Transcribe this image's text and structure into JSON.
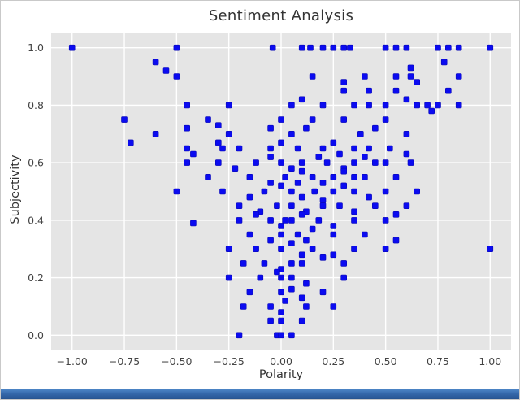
{
  "window": {
    "bottom_strip_color": "#3568ab",
    "frame_border_color": "#c9c9c9"
  },
  "chart_data": {
    "type": "scatter",
    "title": "Sentiment Analysis",
    "xlabel": "Polarity",
    "ylabel": "Subjectivity",
    "xlim": [
      -1.1,
      1.1
    ],
    "ylim": [
      -0.05,
      1.05
    ],
    "x_ticks": [
      -1.0,
      -0.75,
      -0.5,
      -0.25,
      0.0,
      0.25,
      0.5,
      0.75,
      1.0
    ],
    "x_tick_labels": [
      "−1.00",
      "−0.75",
      "−0.50",
      "−0.25",
      "0.00",
      "0.25",
      "0.50",
      "0.75",
      "1.00"
    ],
    "y_ticks": [
      0.0,
      0.2,
      0.4,
      0.6,
      0.8,
      1.0
    ],
    "y_tick_labels": [
      "0.0",
      "0.2",
      "0.4",
      "0.6",
      "0.8",
      "1.0"
    ],
    "grid": true,
    "legend": "none",
    "style": {
      "axes_bg": "#e5e5e5",
      "grid_color": "#ffffff",
      "marker_color": "#0b0bf0",
      "marker_edge": "#0808b8",
      "text_color": "#333333",
      "tick_color": "#444444"
    },
    "points": [
      [
        -1.0,
        1.0
      ],
      [
        -0.5,
        1.0
      ],
      [
        -0.04,
        1.0
      ],
      [
        0.1,
        1.0
      ],
      [
        0.14,
        1.0
      ],
      [
        0.2,
        1.0
      ],
      [
        0.25,
        1.0
      ],
      [
        0.3,
        1.0
      ],
      [
        0.33,
        1.0
      ],
      [
        0.5,
        1.0
      ],
      [
        0.55,
        1.0
      ],
      [
        0.6,
        1.0
      ],
      [
        0.75,
        1.0
      ],
      [
        0.8,
        1.0
      ],
      [
        0.85,
        1.0
      ],
      [
        1.0,
        1.0
      ],
      [
        -0.6,
        0.95
      ],
      [
        -0.55,
        0.92
      ],
      [
        -0.5,
        0.9
      ],
      [
        0.15,
        0.9
      ],
      [
        0.3,
        0.88
      ],
      [
        0.4,
        0.9
      ],
      [
        0.55,
        0.9
      ],
      [
        0.62,
        0.9
      ],
      [
        0.65,
        0.88
      ],
      [
        0.78,
        0.95
      ],
      [
        0.85,
        0.9
      ],
      [
        0.62,
        0.93
      ],
      [
        -0.45,
        0.8
      ],
      [
        -0.25,
        0.8
      ],
      [
        0.05,
        0.8
      ],
      [
        0.1,
        0.82
      ],
      [
        0.2,
        0.8
      ],
      [
        0.3,
        0.85
      ],
      [
        0.35,
        0.8
      ],
      [
        0.42,
        0.85
      ],
      [
        0.5,
        0.8
      ],
      [
        0.55,
        0.85
      ],
      [
        0.6,
        0.82
      ],
      [
        0.65,
        0.8
      ],
      [
        0.7,
        0.8
      ],
      [
        0.72,
        0.78
      ],
      [
        0.75,
        0.8
      ],
      [
        0.8,
        0.85
      ],
      [
        0.85,
        0.8
      ],
      [
        0.42,
        0.8
      ],
      [
        -0.75,
        0.75
      ],
      [
        -0.6,
        0.7
      ],
      [
        -0.45,
        0.72
      ],
      [
        -0.35,
        0.75
      ],
      [
        -0.3,
        0.73
      ],
      [
        -0.25,
        0.7
      ],
      [
        -0.05,
        0.72
      ],
      [
        0.0,
        0.75
      ],
      [
        0.05,
        0.7
      ],
      [
        0.12,
        0.72
      ],
      [
        0.15,
        0.75
      ],
      [
        0.3,
        0.75
      ],
      [
        0.38,
        0.7
      ],
      [
        0.45,
        0.72
      ],
      [
        0.5,
        0.75
      ],
      [
        0.6,
        0.7
      ],
      [
        -0.72,
        0.67
      ],
      [
        -0.45,
        0.65
      ],
      [
        -0.42,
        0.63
      ],
      [
        -0.3,
        0.67
      ],
      [
        -0.28,
        0.65
      ],
      [
        -0.2,
        0.65
      ],
      [
        -0.05,
        0.65
      ],
      [
        0.0,
        0.67
      ],
      [
        0.08,
        0.65
      ],
      [
        0.2,
        0.65
      ],
      [
        0.25,
        0.67
      ],
      [
        0.28,
        0.63
      ],
      [
        0.35,
        0.65
      ],
      [
        0.42,
        0.65
      ],
      [
        0.52,
        0.65
      ],
      [
        0.6,
        0.63
      ],
      [
        -0.45,
        0.6
      ],
      [
        -0.3,
        0.6
      ],
      [
        -0.22,
        0.58
      ],
      [
        -0.12,
        0.6
      ],
      [
        -0.05,
        0.62
      ],
      [
        0.0,
        0.6
      ],
      [
        0.05,
        0.58
      ],
      [
        0.1,
        0.6
      ],
      [
        0.18,
        0.62
      ],
      [
        0.22,
        0.6
      ],
      [
        0.3,
        0.58
      ],
      [
        0.35,
        0.6
      ],
      [
        0.4,
        0.62
      ],
      [
        0.45,
        0.6
      ],
      [
        0.5,
        0.6
      ],
      [
        0.62,
        0.6
      ],
      [
        -0.35,
        0.55
      ],
      [
        -0.15,
        0.55
      ],
      [
        -0.05,
        0.53
      ],
      [
        0.02,
        0.55
      ],
      [
        0.1,
        0.57
      ],
      [
        0.15,
        0.55
      ],
      [
        0.2,
        0.53
      ],
      [
        0.25,
        0.55
      ],
      [
        0.3,
        0.57
      ],
      [
        0.35,
        0.55
      ],
      [
        0.4,
        0.55
      ],
      [
        0.55,
        0.55
      ],
      [
        0.08,
        0.53
      ],
      [
        -0.5,
        0.5
      ],
      [
        -0.28,
        0.5
      ],
      [
        -0.15,
        0.48
      ],
      [
        -0.08,
        0.5
      ],
      [
        0.0,
        0.52
      ],
      [
        0.05,
        0.5
      ],
      [
        0.1,
        0.48
      ],
      [
        0.16,
        0.5
      ],
      [
        0.25,
        0.5
      ],
      [
        0.3,
        0.52
      ],
      [
        0.35,
        0.5
      ],
      [
        0.42,
        0.48
      ],
      [
        0.5,
        0.5
      ],
      [
        0.65,
        0.5
      ],
      [
        0.2,
        0.47
      ],
      [
        -0.2,
        0.45
      ],
      [
        -0.1,
        0.43
      ],
      [
        -0.02,
        0.45
      ],
      [
        0.05,
        0.45
      ],
      [
        0.12,
        0.43
      ],
      [
        0.2,
        0.45
      ],
      [
        0.28,
        0.45
      ],
      [
        0.35,
        0.43
      ],
      [
        0.45,
        0.45
      ],
      [
        0.6,
        0.45
      ],
      [
        -0.42,
        0.39
      ],
      [
        -0.2,
        0.4
      ],
      [
        -0.12,
        0.42
      ],
      [
        -0.05,
        0.4
      ],
      [
        0.0,
        0.38
      ],
      [
        0.05,
        0.4
      ],
      [
        0.1,
        0.42
      ],
      [
        0.18,
        0.4
      ],
      [
        0.25,
        0.38
      ],
      [
        0.35,
        0.4
      ],
      [
        0.5,
        0.4
      ],
      [
        0.55,
        0.42
      ],
      [
        0.02,
        0.4
      ],
      [
        -0.15,
        0.35
      ],
      [
        -0.05,
        0.33
      ],
      [
        0.0,
        0.35
      ],
      [
        0.08,
        0.35
      ],
      [
        0.15,
        0.37
      ],
      [
        0.25,
        0.35
      ],
      [
        0.4,
        0.35
      ],
      [
        0.55,
        0.33
      ],
      [
        0.12,
        0.33
      ],
      [
        -0.25,
        0.3
      ],
      [
        -0.12,
        0.3
      ],
      [
        0.0,
        0.3
      ],
      [
        0.05,
        0.32
      ],
      [
        0.15,
        0.3
      ],
      [
        0.25,
        0.28
      ],
      [
        0.35,
        0.3
      ],
      [
        0.5,
        0.3
      ],
      [
        1.0,
        0.3
      ],
      [
        0.1,
        0.28
      ],
      [
        -0.18,
        0.25
      ],
      [
        -0.08,
        0.25
      ],
      [
        0.0,
        0.23
      ],
      [
        0.1,
        0.25
      ],
      [
        0.2,
        0.27
      ],
      [
        0.3,
        0.25
      ],
      [
        0.05,
        0.25
      ],
      [
        -0.25,
        0.2
      ],
      [
        -0.1,
        0.2
      ],
      [
        -0.02,
        0.22
      ],
      [
        0.05,
        0.2
      ],
      [
        0.12,
        0.18
      ],
      [
        0.3,
        0.2
      ],
      [
        0.0,
        0.2
      ],
      [
        -0.15,
        0.15
      ],
      [
        0.0,
        0.15
      ],
      [
        0.1,
        0.13
      ],
      [
        0.2,
        0.15
      ],
      [
        0.05,
        0.16
      ],
      [
        -0.18,
        0.1
      ],
      [
        -0.05,
        0.1
      ],
      [
        0.02,
        0.12
      ],
      [
        0.12,
        0.1
      ],
      [
        0.25,
        0.1
      ],
      [
        0.0,
        0.08
      ],
      [
        -0.05,
        0.05
      ],
      [
        0.0,
        0.05
      ],
      [
        0.1,
        0.05
      ],
      [
        -0.2,
        0.0
      ],
      [
        -0.02,
        0.0
      ],
      [
        0.0,
        0.0
      ],
      [
        0.05,
        0.0
      ]
    ]
  }
}
